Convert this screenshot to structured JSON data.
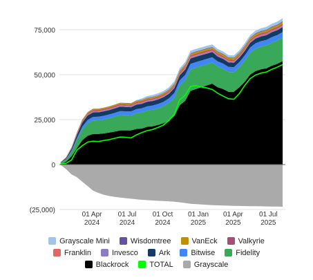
{
  "chart_data": {
    "type": "area",
    "title": "",
    "xlabel": "",
    "ylabel": "",
    "ylim": [
      -25000,
      80000
    ],
    "y_ticks": [
      75000,
      50000,
      25000,
      0,
      -25000
    ],
    "y_tick_labels": [
      "75,000",
      "50,000",
      "25,000",
      "0",
      "(25,000)"
    ],
    "x_tick_labels": [
      {
        "line1": "01 Apr",
        "line2": "2024",
        "date": "2024-04-01"
      },
      {
        "line1": "01 Jul",
        "line2": "2024",
        "date": "2024-07-01"
      },
      {
        "line1": "01 Oct",
        "line2": "2024",
        "date": "2024-10-01"
      },
      {
        "line1": "01 Jan",
        "line2": "2025",
        "date": "2025-01-01"
      },
      {
        "line1": "01 Apr",
        "line2": "2025",
        "date": "2025-04-01"
      },
      {
        "line1": "01 Jul",
        "line2": "2025",
        "date": "2025-07-01"
      }
    ],
    "grid": true,
    "legend_position": "bottom",
    "x": [
      "2024-01-11",
      "2024-01-25",
      "2024-02-08",
      "2024-02-22",
      "2024-03-07",
      "2024-03-21",
      "2024-04-04",
      "2024-04-18",
      "2024-05-02",
      "2024-05-16",
      "2024-05-30",
      "2024-06-13",
      "2024-06-27",
      "2024-07-11",
      "2024-07-25",
      "2024-08-08",
      "2024-08-22",
      "2024-09-05",
      "2024-09-19",
      "2024-10-03",
      "2024-10-17",
      "2024-10-31",
      "2024-11-14",
      "2024-11-28",
      "2024-12-12",
      "2024-12-26",
      "2025-01-09",
      "2025-01-23",
      "2025-02-06",
      "2025-02-20",
      "2025-03-06",
      "2025-03-20",
      "2025-04-03",
      "2025-04-17",
      "2025-05-01",
      "2025-05-15",
      "2025-05-29",
      "2025-06-12",
      "2025-06-26",
      "2025-07-10",
      "2025-07-24",
      "2025-08-07"
    ],
    "stack_order": [
      "Blackrock",
      "Fidelity",
      "Bitwise",
      "Ark",
      "Invesco",
      "Franklin",
      "Valkyrie",
      "VanEck",
      "Wisdomtree",
      "Grayscale Mini"
    ],
    "series": [
      {
        "name": "Blackrock",
        "color": "#000000",
        "kind": "area",
        "values": [
          500,
          1500,
          4500,
          9000,
          13500,
          16000,
          17000,
          17000,
          17300,
          17800,
          18300,
          19000,
          19000,
          19000,
          19800,
          20000,
          21000,
          21300,
          22000,
          23000,
          24500,
          27000,
          33000,
          35500,
          41000,
          42000,
          43000,
          44000,
          45000,
          43000,
          42000,
          40500,
          40500,
          43000,
          46000,
          50000,
          52000,
          53000,
          53500,
          55000,
          56000,
          57500
        ]
      },
      {
        "name": "Fidelity",
        "color": "#3aa859",
        "kind": "area",
        "values": [
          400,
          1200,
          2500,
          4500,
          6000,
          7000,
          7500,
          7600,
          7800,
          8000,
          8300,
          8500,
          8400,
          8300,
          8800,
          9000,
          9100,
          9200,
          9300,
          9500,
          9800,
          10200,
          11000,
          11500,
          12000,
          12000,
          11900,
          11800,
          11800,
          11500,
          11300,
          11000,
          10900,
          11200,
          11800,
          12200,
          12500,
          12700,
          12800,
          12900,
          13000,
          13200
        ]
      },
      {
        "name": "Bitwise",
        "color": "#4285f4",
        "kind": "area",
        "values": [
          100,
          300,
          600,
          1100,
          1500,
          1800,
          2000,
          2000,
          2050,
          2100,
          2150,
          2200,
          2200,
          2200,
          2250,
          2300,
          2300,
          2350,
          2400,
          2400,
          2500,
          2600,
          2800,
          2900,
          3000,
          3000,
          3000,
          3000,
          2950,
          2900,
          2850,
          2800,
          2800,
          2800,
          2850,
          2900,
          2950,
          2950,
          3000,
          3000,
          3000,
          3050
        ]
      },
      {
        "name": "Ark",
        "color": "#123a63",
        "kind": "area",
        "values": [
          200,
          500,
          1000,
          1800,
          2300,
          2500,
          2500,
          2450,
          2450,
          2400,
          2450,
          2500,
          2450,
          2400,
          2450,
          2500,
          2500,
          2500,
          2500,
          2550,
          2600,
          2700,
          2800,
          2900,
          3000,
          3000,
          2950,
          2900,
          2850,
          2700,
          2600,
          2500,
          2450,
          2450,
          2500,
          2550,
          2600,
          2600,
          2650,
          2700,
          2700,
          2750
        ]
      },
      {
        "name": "Invesco",
        "color": "#8e7cc3",
        "kind": "area",
        "values": [
          50,
          150,
          250,
          300,
          350,
          380,
          400,
          400,
          400,
          400,
          400,
          400,
          400,
          400,
          400,
          400,
          400,
          400,
          400,
          400,
          400,
          420,
          450,
          470,
          500,
          500,
          500,
          490,
          480,
          470,
          460,
          450,
          450,
          450,
          450,
          460,
          470,
          480,
          480,
          490,
          500,
          500
        ]
      },
      {
        "name": "Franklin",
        "color": "#e06666",
        "kind": "area",
        "values": [
          30,
          80,
          150,
          250,
          300,
          350,
          380,
          400,
          400,
          400,
          400,
          420,
          420,
          420,
          420,
          430,
          440,
          440,
          450,
          450,
          470,
          480,
          500,
          520,
          550,
          550,
          550,
          550,
          540,
          530,
          520,
          510,
          510,
          510,
          520,
          530,
          540,
          550,
          550,
          560,
          560,
          570
        ]
      },
      {
        "name": "Valkyrie",
        "color": "#a64d79",
        "kind": "area",
        "values": [
          50,
          150,
          250,
          400,
          450,
          500,
          520,
          530,
          540,
          550,
          560,
          560,
          560,
          560,
          570,
          570,
          580,
          580,
          580,
          590,
          600,
          610,
          620,
          630,
          640,
          640,
          640,
          630,
          620,
          610,
          600,
          600,
          600,
          600,
          610,
          620,
          630,
          640,
          650,
          650,
          660,
          660
        ]
      },
      {
        "name": "VanEck",
        "color": "#bf9000",
        "kind": "area",
        "values": [
          50,
          150,
          300,
          450,
          550,
          600,
          650,
          650,
          660,
          670,
          680,
          690,
          690,
          690,
          700,
          710,
          720,
          730,
          740,
          750,
          780,
          820,
          900,
          950,
          1000,
          1000,
          1000,
          990,
          980,
          970,
          960,
          950,
          950,
          960,
          980,
          1000,
          1020,
          1040,
          1050,
          1060,
          1070,
          1080
        ]
      },
      {
        "name": "Wisdomtree",
        "color": "#674ea7",
        "kind": "area",
        "values": [
          10,
          20,
          30,
          40,
          50,
          60,
          70,
          80,
          90,
          100,
          110,
          120,
          130,
          140,
          150,
          160,
          170,
          180,
          190,
          200,
          210,
          220,
          230,
          240,
          250,
          260,
          270,
          280,
          290,
          300,
          300,
          300,
          300,
          300,
          310,
          320,
          330,
          340,
          350,
          360,
          370,
          380
        ]
      },
      {
        "name": "Grayscale Mini",
        "color": "#9fc5e8",
        "kind": "area",
        "values": [
          0,
          0,
          0,
          0,
          0,
          0,
          0,
          0,
          0,
          0,
          0,
          0,
          0,
          0,
          300,
          700,
          900,
          1000,
          1050,
          1100,
          1150,
          1200,
          1300,
          1350,
          1400,
          1400,
          1400,
          1380,
          1350,
          1320,
          1300,
          1280,
          1280,
          1300,
          1350,
          1400,
          1450,
          1500,
          1550,
          1600,
          1650,
          1700
        ]
      },
      {
        "name": "Grayscale",
        "color": "#aaaaaa",
        "kind": "area-negative",
        "values": [
          -200,
          -2500,
          -5500,
          -7000,
          -9500,
          -12000,
          -14500,
          -15800,
          -16800,
          -17500,
          -18000,
          -18400,
          -18700,
          -19000,
          -19300,
          -19600,
          -19800,
          -20000,
          -20200,
          -20300,
          -20500,
          -20700,
          -21000,
          -21400,
          -21800,
          -22000,
          -22200,
          -22400,
          -22600,
          -22700,
          -22800,
          -22900,
          -23000,
          -23050,
          -23100,
          -23150,
          -23200,
          -23250,
          -23300,
          -23350,
          -23400,
          -23450
        ]
      },
      {
        "name": "TOTAL",
        "color": "#00ff00",
        "kind": "line",
        "values": [
          500,
          700,
          2500,
          8000,
          10500,
          12500,
          13000,
          12800,
          13400,
          13900,
          14600,
          15300,
          15200,
          14800,
          16500,
          17800,
          18900,
          19500,
          20700,
          22000,
          24500,
          28000,
          36000,
          38600,
          43500,
          43900,
          43100,
          42600,
          41800,
          39700,
          38100,
          36600,
          36300,
          39500,
          44000,
          47800,
          49800,
          50900,
          51500,
          53000,
          54200,
          55600
        ]
      }
    ]
  },
  "legend": [
    [
      {
        "label": "Grayscale Mini",
        "color": "#9fc5e8"
      },
      {
        "label": "Wisdomtree",
        "color": "#674ea7"
      },
      {
        "label": "VanEck",
        "color": "#bf9000"
      },
      {
        "label": "Valkyrie",
        "color": "#a64d79"
      }
    ],
    [
      {
        "label": "Franklin",
        "color": "#e06666"
      },
      {
        "label": "Invesco",
        "color": "#8e7cc3"
      },
      {
        "label": "Ark",
        "color": "#123a63"
      },
      {
        "label": "Bitwise",
        "color": "#4285f4"
      },
      {
        "label": "Fidelity",
        "color": "#3aa859"
      }
    ],
    [
      {
        "label": "Blackrock",
        "color": "#000000"
      },
      {
        "label": "TOTAL",
        "color": "#00ff00"
      },
      {
        "label": "Grayscale",
        "color": "#aaaaaa"
      }
    ]
  ]
}
